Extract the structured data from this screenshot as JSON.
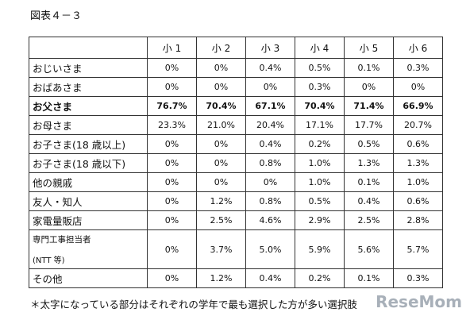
{
  "title": "図表４－３",
  "table": {
    "columns": [
      "小 1",
      "小 2",
      "小 3",
      "小 4",
      "小 5",
      "小 6"
    ],
    "rows": [
      {
        "label": "おじいさま",
        "values": [
          "0%",
          "0%",
          "0.4%",
          "0.5%",
          "0.1%",
          "0.3%"
        ]
      },
      {
        "label": "おばあさま",
        "values": [
          "0%",
          "0%",
          "0%",
          "0.3%",
          "0%",
          "0%"
        ]
      },
      {
        "label": "お父さま",
        "values": [
          "76.7%",
          "70.4%",
          "67.1%",
          "70.4%",
          "71.4%",
          "66.9%"
        ]
      },
      {
        "label": "お母さま",
        "values": [
          "23.3%",
          "21.0%",
          "20.4%",
          "17.1%",
          "17.7%",
          "20.7%"
        ]
      },
      {
        "label": "お子さま(18 歳以上)",
        "values": [
          "0%",
          "0%",
          "0.4%",
          "0.2%",
          "0.5%",
          "0.6%"
        ]
      },
      {
        "label": "お子さま(18 歳以下)",
        "values": [
          "0%",
          "0%",
          "0.8%",
          "1.0%",
          "1.3%",
          "1.3%"
        ]
      },
      {
        "label": "他の親戚",
        "values": [
          "0%",
          "0%",
          "0%",
          "1.0%",
          "0.1%",
          "1.0%"
        ]
      },
      {
        "label": "友人・知人",
        "values": [
          "0%",
          "1.2%",
          "0.8%",
          "0.5%",
          "0.4%",
          "0.6%"
        ]
      },
      {
        "label": "家電量販店",
        "values": [
          "0%",
          "2.5%",
          "4.6%",
          "2.9%",
          "2.5%",
          "2.8%"
        ]
      },
      {
        "label": "専門工事担当者",
        "sublabel": "(NTT 等)",
        "values": [
          "0%",
          "3.7%",
          "5.0%",
          "5.9%",
          "5.6%",
          "5.7%"
        ]
      },
      {
        "label": "その他",
        "values": [
          "0%",
          "1.2%",
          "0.4%",
          "0.2%",
          "0.1%",
          "0.3%"
        ]
      }
    ]
  },
  "footnote": "＊太字になっている部分はそれぞれの学年で最も選択した方が多い選択肢",
  "watermark": "ReseMom"
}
